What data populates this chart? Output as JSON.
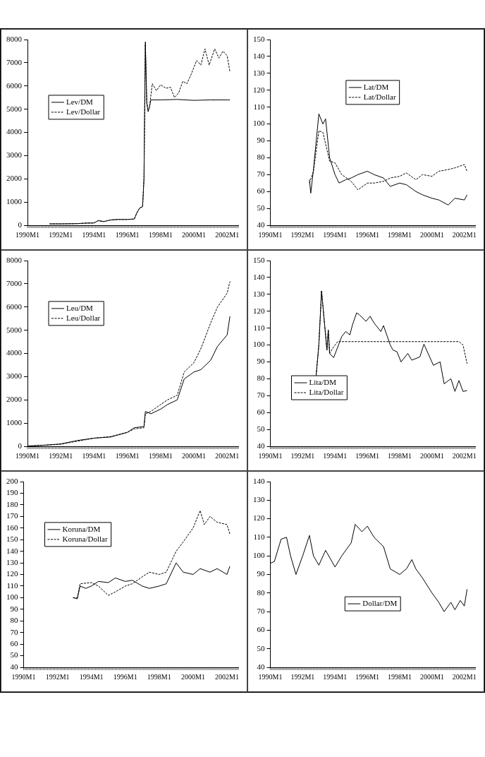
{
  "chart_data": [
    {
      "type": "line",
      "legend": "left",
      "xlim": [
        "1990-01",
        "2002-09"
      ],
      "xticks": [
        {
          "value": "1990-01",
          "label": "1990M1"
        },
        {
          "value": "1992-01",
          "label": "1992M1"
        },
        {
          "value": "1994-01",
          "label": "1994M1"
        },
        {
          "value": "1996-01",
          "label": "1996M1"
        },
        {
          "value": "1998-01",
          "label": "1998M1"
        },
        {
          "value": "2000-01",
          "label": "2000M1"
        },
        {
          "value": "2002-01",
          "label": "2002M1"
        }
      ],
      "ylim": [
        0,
        8000
      ],
      "yticks": [
        0,
        1000,
        2000,
        3000,
        4000,
        5000,
        6000,
        7000,
        8000
      ],
      "series": [
        {
          "name": "Lev/DM",
          "color": "#000000",
          "line_style": "solid",
          "x": [
            "1991-05",
            "1992-01",
            "1993-01",
            "1993-06",
            "1994-01",
            "1994-04",
            "1994-08",
            "1995-01",
            "1995-06",
            "1996-01",
            "1996-06",
            "1996-08",
            "1996-10",
            "1996-12",
            "1997-01",
            "1997-02",
            "1997-03",
            "1997-04",
            "1997-05",
            "1997-06",
            "1998-01",
            "1999-01",
            "2000-01",
            "2001-01",
            "2002-01",
            "2002-03"
          ],
          "values": [
            60,
            60,
            70,
            90,
            100,
            200,
            160,
            230,
            250,
            250,
            270,
            550,
            750,
            800,
            2000,
            7900,
            5300,
            4900,
            5100,
            5400,
            5400,
            5420,
            5380,
            5400,
            5400,
            5400
          ]
        },
        {
          "name": "Lev/Dollar",
          "color": "#000000",
          "line_style": "dashed",
          "x": [
            "1991-05",
            "1992-01",
            "1993-01",
            "1993-06",
            "1994-01",
            "1994-04",
            "1994-08",
            "1995-01",
            "1995-06",
            "1996-01",
            "1996-06",
            "1996-08",
            "1996-10",
            "1996-12",
            "1997-01",
            "1997-02",
            "1997-03",
            "1997-04",
            "1997-05",
            "1997-07",
            "1997-10",
            "1998-01",
            "1998-05",
            "1998-08",
            "1998-11",
            "1999-02",
            "1999-05",
            "1999-08",
            "1999-11",
            "2000-03",
            "2000-06",
            "2000-09",
            "2000-12",
            "2001-04",
            "2001-07",
            "2001-10",
            "2002-01",
            "2002-03"
          ],
          "values": [
            60,
            60,
            70,
            90,
            100,
            200,
            160,
            230,
            250,
            250,
            270,
            550,
            750,
            800,
            2000,
            7800,
            5300,
            4900,
            5100,
            6100,
            5800,
            6050,
            5900,
            5950,
            5500,
            5700,
            6200,
            6100,
            6500,
            7100,
            6900,
            7600,
            6900,
            7600,
            7200,
            7500,
            7300,
            6600
          ]
        }
      ]
    },
    {
      "type": "line",
      "legend": "top",
      "xlim": [
        "1990-01",
        "2002-09"
      ],
      "xticks": [
        {
          "value": "1990-01",
          "label": "1990M1"
        },
        {
          "value": "1992-01",
          "label": "1992M1"
        },
        {
          "value": "1994-01",
          "label": "1994M1"
        },
        {
          "value": "1996-01",
          "label": "1996M1"
        },
        {
          "value": "1998-01",
          "label": "1998M1"
        },
        {
          "value": "2000-01",
          "label": "2000M1"
        },
        {
          "value": "2002-01",
          "label": "2002M1"
        }
      ],
      "ylim": [
        40,
        150
      ],
      "yticks": [
        40,
        50,
        60,
        70,
        80,
        90,
        100,
        110,
        120,
        130,
        140,
        150
      ],
      "series": [
        {
          "name": "Lat/DM",
          "color": "#000000",
          "line_style": "solid",
          "x": [
            "1992-06",
            "1992-07",
            "1992-09",
            "1993-01",
            "1993-04",
            "1993-06",
            "1993-09",
            "1994-01",
            "1994-04",
            "1994-09",
            "1995-01",
            "1995-06",
            "1996-01",
            "1996-06",
            "1997-01",
            "1997-06",
            "1998-01",
            "1998-06",
            "1999-01",
            "1999-06",
            "2000-01",
            "2000-06",
            "2001-01",
            "2001-06",
            "2002-01",
            "2002-03"
          ],
          "values": [
            67,
            59,
            73,
            106,
            100,
            103,
            80,
            70,
            65,
            67,
            68,
            70,
            72,
            70,
            68,
            63,
            65,
            64,
            60,
            58,
            56,
            55,
            52,
            56,
            55,
            58
          ]
        },
        {
          "name": "Lat/Dollar",
          "color": "#000000",
          "line_style": "dashed",
          "x": [
            "1992-06",
            "1992-09",
            "1993-01",
            "1993-04",
            "1993-09",
            "1994-01",
            "1994-06",
            "1995-01",
            "1995-06",
            "1996-01",
            "1996-06",
            "1997-01",
            "1997-06",
            "1998-01",
            "1998-06",
            "1999-01",
            "1999-06",
            "2000-01",
            "2000-06",
            "2001-01",
            "2001-06",
            "2002-01",
            "2002-03"
          ],
          "values": [
            65,
            72,
            96,
            95,
            78,
            77,
            70,
            66,
            61,
            65,
            65,
            66,
            68,
            69,
            71,
            67,
            70,
            69,
            72,
            73,
            74,
            76,
            72
          ]
        }
      ]
    },
    {
      "type": "line",
      "legend": "top left",
      "xlim": [
        "1990-01",
        "2002-09"
      ],
      "xticks": [
        {
          "value": "1990-01",
          "label": "1990M1"
        },
        {
          "value": "1992-01",
          "label": "1992M1"
        },
        {
          "value": "1994-01",
          "label": "1994M1"
        },
        {
          "value": "1996-01",
          "label": "1996M1"
        },
        {
          "value": "1998-01",
          "label": "1998M1"
        },
        {
          "value": "2000-01",
          "label": "2000M1"
        },
        {
          "value": "2002-01",
          "label": "2002M1"
        }
      ],
      "ylim": [
        0,
        8000
      ],
      "yticks": [
        0,
        1000,
        2000,
        3000,
        4000,
        5000,
        6000,
        7000,
        8000
      ],
      "series": [
        {
          "name": "Leu/DM",
          "color": "#000000",
          "line_style": "solid",
          "x": [
            "1990-01",
            "1991-01",
            "1992-01",
            "1993-01",
            "1994-01",
            "1995-01",
            "1996-01",
            "1996-06",
            "1997-01",
            "1997-02",
            "1997-06",
            "1998-01",
            "1998-06",
            "1999-01",
            "1999-06",
            "2000-01",
            "2000-06",
            "2001-01",
            "2001-06",
            "2002-01",
            "2002-03"
          ],
          "values": [
            10,
            50,
            100,
            250,
            350,
            400,
            600,
            800,
            850,
            1500,
            1400,
            1600,
            1800,
            2000,
            2900,
            3200,
            3300,
            3700,
            4300,
            4800,
            5600
          ]
        },
        {
          "name": "Leu/Dollar",
          "color": "#000000",
          "line_style": "dashed",
          "x": [
            "1990-01",
            "1991-01",
            "1992-01",
            "1993-01",
            "1994-01",
            "1995-01",
            "1996-01",
            "1996-06",
            "1997-01",
            "1997-02",
            "1997-06",
            "1998-01",
            "1998-06",
            "1999-01",
            "1999-06",
            "2000-01",
            "2000-06",
            "2001-01",
            "2001-06",
            "2002-01",
            "2002-03"
          ],
          "values": [
            10,
            40,
            90,
            220,
            350,
            420,
            600,
            750,
            800,
            1400,
            1500,
            1800,
            2000,
            2200,
            3200,
            3600,
            4200,
            5300,
            6000,
            6600,
            7100
          ]
        }
      ]
    },
    {
      "type": "line",
      "legend": "bottom left",
      "xlim": [
        "1990-01",
        "2002-09"
      ],
      "xticks": [
        {
          "value": "1990-01",
          "label": "1990M1"
        },
        {
          "value": "1992-01",
          "label": "1992M1"
        },
        {
          "value": "1994-01",
          "label": "1994M1"
        },
        {
          "value": "1996-01",
          "label": "1996M1"
        },
        {
          "value": "1998-01",
          "label": "1998M1"
        },
        {
          "value": "2000-01",
          "label": "2000M1"
        },
        {
          "value": "2002-01",
          "label": "2002M1"
        }
      ],
      "ylim": [
        40,
        150
      ],
      "yticks": [
        40,
        50,
        60,
        70,
        80,
        90,
        100,
        110,
        120,
        130,
        140,
        150
      ],
      "series": [
        {
          "name": "Lita/DM",
          "color": "#000000",
          "line_style": "solid",
          "x": [
            "1992-11",
            "1993-01",
            "1993-03",
            "1993-07",
            "1993-08",
            "1993-09",
            "1993-12",
            "1994-06",
            "1994-09",
            "1994-12",
            "1995-02",
            "1995-05",
            "1995-07",
            "1995-12",
            "1996-03",
            "1996-06",
            "1996-11",
            "1997-01",
            "1997-06",
            "1997-08",
            "1997-11",
            "1998-02",
            "1998-07",
            "1998-10",
            "1999-04",
            "1999-07",
            "2000-02",
            "2000-07",
            "2000-10",
            "2001-03",
            "2001-06",
            "2001-09",
            "2001-12",
            "2002-03"
          ],
          "values": [
            82,
            100,
            132,
            97,
            109,
            95,
            92.5,
            105,
            108,
            106,
            112,
            119,
            118,
            114,
            117,
            113,
            108,
            111.5,
            100,
            97,
            96,
            90,
            95,
            91,
            93,
            100.5,
            88,
            90,
            77,
            80,
            72.5,
            79,
            72.5,
            73
          ]
        },
        {
          "name": "Lita/Dollar",
          "color": "#000000",
          "line_style": "dashed",
          "x": [
            "1992-11",
            "1993-01",
            "1993-03",
            "1993-07",
            "1993-08",
            "1993-09",
            "1993-12",
            "1994-03",
            "2001-09",
            "2001-12",
            "2002-03"
          ],
          "values": [
            82,
            100,
            132,
            97,
            109,
            95,
            99,
            102,
            102,
            100,
            89
          ]
        }
      ]
    },
    {
      "type": "line",
      "legend": "top left",
      "xlim": [
        "1990-01",
        "2002-09"
      ],
      "xticks": [
        {
          "value": "1990-01",
          "label": "1990M1"
        },
        {
          "value": "1992-01",
          "label": "1992M1"
        },
        {
          "value": "1994-01",
          "label": "1994M1"
        },
        {
          "value": "1996-01",
          "label": "1996M1"
        },
        {
          "value": "1998-01",
          "label": "1998M1"
        },
        {
          "value": "2000-01",
          "label": "2000M1"
        },
        {
          "value": "2002-01",
          "label": "2002M1"
        }
      ],
      "ylim": [
        40,
        200
      ],
      "yticks": [
        40,
        50,
        60,
        70,
        80,
        90,
        100,
        110,
        120,
        130,
        140,
        150,
        160,
        170,
        180,
        190,
        200
      ],
      "series": [
        {
          "name": "Koruna/DM",
          "color": "#000000",
          "line_style": "solid",
          "x": [
            "1992-12",
            "1993-03",
            "1993-05",
            "1993-09",
            "1994-01",
            "1994-06",
            "1995-01",
            "1995-06",
            "1996-01",
            "1996-06",
            "1997-01",
            "1997-06",
            "1998-01",
            "1998-06",
            "1999-01",
            "1999-06",
            "2000-01",
            "2000-06",
            "2001-01",
            "2001-06",
            "2002-01",
            "2002-03"
          ],
          "values": [
            100,
            99,
            110,
            108,
            110,
            114,
            113,
            117,
            114,
            115,
            110,
            108,
            110,
            112,
            130,
            122,
            120,
            125,
            122,
            125,
            120,
            127
          ]
        },
        {
          "name": "Koruna/Dollar",
          "color": "#000000",
          "line_style": "dashed",
          "x": [
            "1992-12",
            "1993-03",
            "1993-05",
            "1994-01",
            "1994-06",
            "1995-01",
            "1995-06",
            "1996-01",
            "1996-06",
            "1997-01",
            "1997-06",
            "1998-01",
            "1998-06",
            "1999-01",
            "1999-06",
            "2000-01",
            "2000-06",
            "2000-09",
            "2001-01",
            "2001-06",
            "2002-01",
            "2002-03"
          ],
          "values": [
            100,
            100,
            112,
            113,
            110,
            102,
            105,
            110,
            112,
            118,
            122,
            120,
            122,
            140,
            148,
            160,
            175,
            163,
            170,
            165,
            163,
            155
          ]
        }
      ]
    },
    {
      "type": "line",
      "legend": "bottom",
      "xlim": [
        "1990-01",
        "2002-09"
      ],
      "xticks": [
        {
          "value": "1990-01",
          "label": "1990M1"
        },
        {
          "value": "1992-01",
          "label": "1992M1"
        },
        {
          "value": "1994-01",
          "label": "1994M1"
        },
        {
          "value": "1996-01",
          "label": "1996M1"
        },
        {
          "value": "1998-01",
          "label": "1998M1"
        },
        {
          "value": "2000-01",
          "label": "2000M1"
        },
        {
          "value": "2002-01",
          "label": "2002M1"
        }
      ],
      "ylim": [
        40,
        140
      ],
      "yticks": [
        40,
        50,
        60,
        70,
        80,
        90,
        100,
        110,
        120,
        130,
        140
      ],
      "series": [
        {
          "name": "Dollar/DM",
          "color": "#000000",
          "line_style": "solid",
          "x": [
            "1990-01",
            "1990-04",
            "1990-09",
            "1991-01",
            "1991-04",
            "1991-08",
            "1992-01",
            "1992-06",
            "1992-09",
            "1993-01",
            "1993-06",
            "1994-01",
            "1994-06",
            "1995-01",
            "1995-04",
            "1995-09",
            "1996-01",
            "1996-06",
            "1997-01",
            "1997-06",
            "1998-01",
            "1998-06",
            "1998-10",
            "1999-01",
            "1999-06",
            "2000-01",
            "2000-06",
            "2000-10",
            "2001-03",
            "2001-06",
            "2001-10",
            "2002-01",
            "2002-03"
          ],
          "values": [
            96,
            97,
            109,
            110,
            100,
            90,
            100,
            111,
            100,
            95,
            103,
            94,
            100,
            107,
            117,
            113,
            116,
            110,
            105,
            93,
            90,
            93,
            98,
            93,
            88,
            80,
            75,
            70,
            75,
            71,
            76,
            73,
            82
          ]
        }
      ]
    }
  ]
}
